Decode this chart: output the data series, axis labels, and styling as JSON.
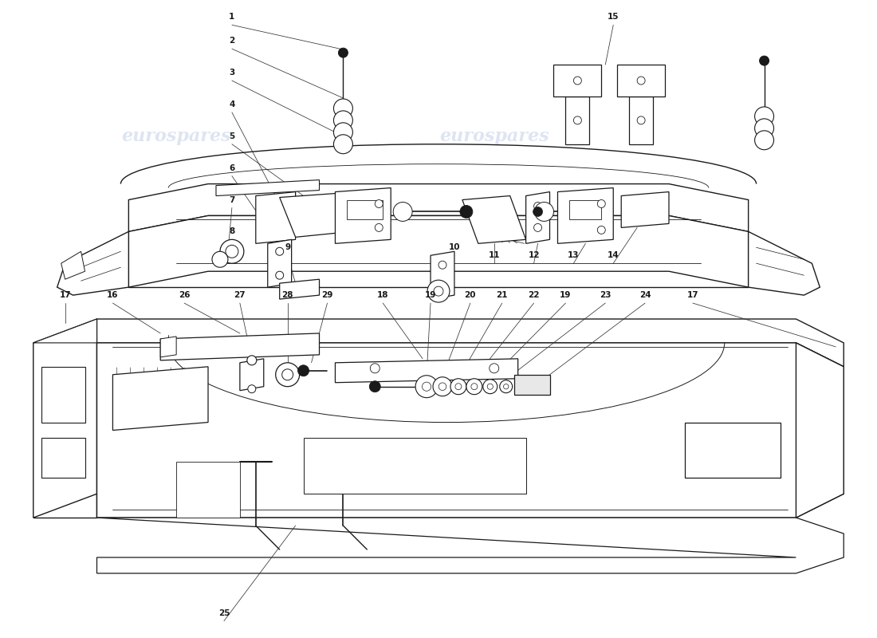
{
  "bg_color": "#ffffff",
  "line_color": "#1a1a1a",
  "watermark_color": "#c8d4e8",
  "watermark_text": "eurospares",
  "fig_w": 11.0,
  "fig_h": 8.0,
  "dpi": 100
}
